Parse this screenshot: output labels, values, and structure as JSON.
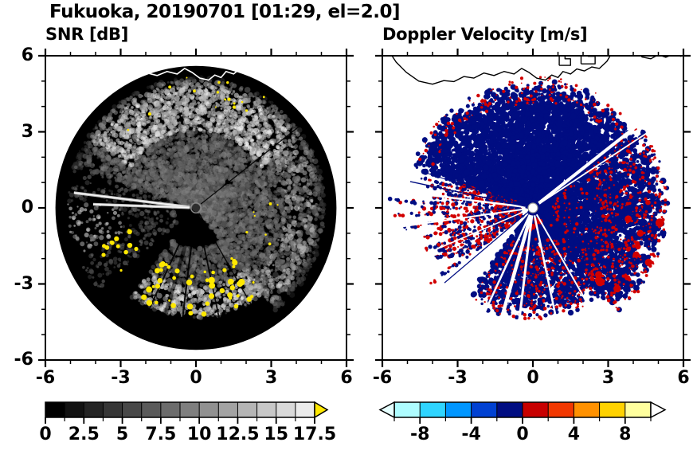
{
  "header": {
    "title": "Fukuoka, 20190701 [01:29, el=2.0]"
  },
  "panels": [
    {
      "title": "SNR [dB]"
    },
    {
      "title": "Doppler Velocity [m/s]"
    }
  ],
  "chart_data": [
    {
      "type": "heatmap",
      "title": "SNR [dB]",
      "xlabel": "",
      "ylabel": "",
      "xlim": [
        -6,
        6
      ],
      "ylim": [
        -6,
        6
      ],
      "xticks": [
        -6,
        -3,
        0,
        3,
        6
      ],
      "yticks": [
        6,
        3,
        0,
        -3,
        -6
      ],
      "minor_tick_interval": 1,
      "grid": false,
      "colorbar": {
        "orientation": "horizontal",
        "range": [
          0,
          17.5
        ],
        "n_steps": 14,
        "tick_labels": [
          0,
          2.5,
          5,
          7.5,
          10,
          12.5,
          15,
          17.5
        ],
        "colormap": "grayscale black-to-white",
        "over_arrow_color": "#ffe800"
      },
      "content": "Radar PPI scan: black disk of radius ~5.6 km centered at origin; grayscale precipitation echo over N/NE/E/SE sectors with a bright band near the northern edge (r 3-5 km), a bright narrow transmit beam toward az 277 deg, dark blocked-beam rays toward az 52/150/168/187/196/205/222 deg, saturated yellow patches along a southern arc (az 140-215, r 2.5-4.2) plus scattered spots near the north edge, and a white coastline plotted along the top"
    },
    {
      "type": "heatmap",
      "title": "Doppler Velocity [m/s]",
      "xlabel": "",
      "ylabel": "",
      "xlim": [
        -6,
        6
      ],
      "ylim": [
        -6,
        6
      ],
      "xticks": [
        -6,
        -3,
        0,
        3,
        6
      ],
      "yticks": [
        6,
        3,
        0,
        -3,
        -6
      ],
      "minor_tick_interval": 1,
      "grid": false,
      "colorbar": {
        "orientation": "horizontal",
        "range": [
          -10,
          10
        ],
        "tick_labels": [
          -8,
          -4,
          0,
          4,
          8
        ],
        "segment_colors": [
          "#aefcff",
          "#2fd4ff",
          "#0096ff",
          "#0041d2",
          "#000d82",
          "#c80000",
          "#f23800",
          "#ff9100",
          "#ffd200",
          "#ffff9e"
        ],
        "under_arrow_color": "#e6ffff",
        "over_arrow_color": "#ffffff"
      },
      "content": "Same scan colored by radial velocity on a white background: dominant dark-navy region (about -2..0 m/s) covering N-E-SE-S sectors, red speckle (about 0..+2 m/s) along the eastern and southern echo edges and in a detached streaky navy/red wedge to the WSW, white blocked-beam rays, black coastline along the top"
    }
  ],
  "radar": {
    "disk_radius": 5.6,
    "colors": {
      "disk": "#000000",
      "navy": "#000d82",
      "red": "#d20000",
      "yellow": "#ffe800",
      "coast_snr": "#ffffff",
      "coast_vel": "#000000"
    },
    "blocked_rays": [
      {
        "az": 52,
        "w_snr": 1.3,
        "w_vel": 4.0
      },
      {
        "az": 57,
        "w_snr": 0,
        "w_vel": 1.8
      },
      {
        "az": 150,
        "w_snr": 1.5,
        "w_vel": 2.0
      },
      {
        "az": 168,
        "w_snr": 1.8,
        "w_vel": 2.5
      },
      {
        "az": 187,
        "w_snr": 2.2,
        "w_vel": 3.0
      },
      {
        "az": 196,
        "w_snr": 5.0,
        "w_vel": 4.5
      },
      {
        "az": 205,
        "w_snr": 2.0,
        "w_vel": 2.5
      },
      {
        "az": 222,
        "w_snr": 1.6,
        "w_vel": 2.0
      },
      {
        "az": 247,
        "w_snr": 0,
        "w_vel": 1.5
      },
      {
        "az": 262,
        "w_snr": 0,
        "w_vel": 2.0
      },
      {
        "az": 277,
        "w_snr": 0,
        "w_vel": 2.5
      }
    ],
    "bright_beams": [
      {
        "az": 277,
        "r1": 4.9
      },
      {
        "az": 272,
        "r1": 4.1
      }
    ],
    "navy_needles": [
      {
        "az": 282,
        "r1": 5.0,
        "w": 1.4
      },
      {
        "az": 288,
        "r1": 4.4,
        "w": 1.1
      },
      {
        "az": 230,
        "r1": 4.6,
        "w": 1.2
      }
    ],
    "coastline": {
      "mainland": [
        [
          -5.75,
          6.2
        ],
        [
          -5.45,
          5.75
        ],
        [
          -5.05,
          5.35
        ],
        [
          -4.55,
          5.0
        ],
        [
          -4.0,
          4.88
        ],
        [
          -3.55,
          5.02
        ],
        [
          -3.15,
          4.98
        ],
        [
          -2.75,
          5.18
        ],
        [
          -2.35,
          5.12
        ],
        [
          -1.95,
          5.32
        ],
        [
          -1.55,
          5.22
        ],
        [
          -1.15,
          5.38
        ],
        [
          -0.75,
          5.28
        ],
        [
          -0.45,
          5.5
        ],
        [
          -0.15,
          5.34
        ],
        [
          0.15,
          5.12
        ],
        [
          0.5,
          5.04
        ],
        [
          0.75,
          5.24
        ],
        [
          1.0,
          5.14
        ],
        [
          1.2,
          5.38
        ],
        [
          1.5,
          5.28
        ],
        [
          1.75,
          5.48
        ],
        [
          2.05,
          5.4
        ],
        [
          2.35,
          5.56
        ],
        [
          2.65,
          5.5
        ],
        [
          2.95,
          5.78
        ],
        [
          3.2,
          6.2
        ]
      ],
      "pier_a": [
        [
          1.05,
          5.62
        ],
        [
          1.5,
          5.62
        ],
        [
          1.5,
          5.88
        ],
        [
          1.28,
          5.88
        ],
        [
          1.28,
          6.05
        ],
        [
          1.05,
          6.05
        ],
        [
          1.05,
          5.62
        ]
      ],
      "pier_b": [
        [
          1.92,
          5.68
        ],
        [
          2.48,
          5.68
        ],
        [
          2.48,
          5.98
        ],
        [
          2.2,
          5.98
        ],
        [
          2.2,
          6.12
        ],
        [
          1.92,
          6.12
        ],
        [
          1.92,
          5.68
        ]
      ],
      "east_shore": [
        [
          4.15,
          6.2
        ],
        [
          4.35,
          5.95
        ],
        [
          4.7,
          5.88
        ],
        [
          5.0,
          6.04
        ],
        [
          5.3,
          5.94
        ],
        [
          5.6,
          6.06
        ],
        [
          5.9,
          5.98
        ],
        [
          6.1,
          6.04
        ]
      ]
    }
  }
}
